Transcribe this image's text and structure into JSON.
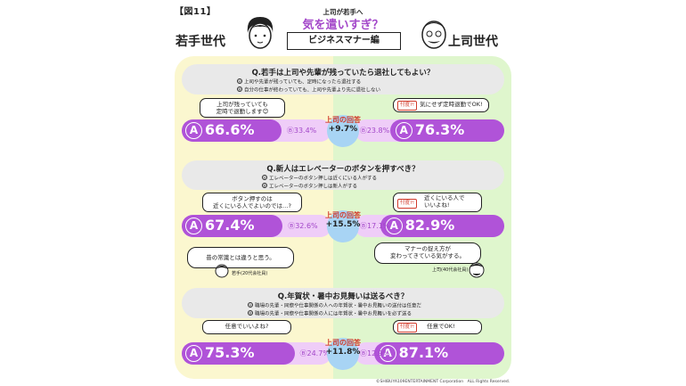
{
  "figure_tag": "【図11】",
  "header": {
    "subtitle": "上司が若手へ",
    "title": "気を遣いすぎ？",
    "banner": "ビジネスマナー編",
    "left_generation": "若手世代",
    "right_generation": "上司世代"
  },
  "boss_label_line1": "上司の回答",
  "questions": [
    {
      "title": "Q.若手は上司や先輩が残っていたら退社してもよい？",
      "option_a_marker": "Ⓐ",
      "option_a": "上司や先輩が残っていても、定時になったら退社する",
      "option_b_marker": "Ⓑ",
      "option_b": "自分の仕事が終わっていても、上司や先輩より先に退社しない",
      "young_comment": "上司が残っていても\n定時で退勤します😊",
      "boss_tag": "忖度?!",
      "boss_comment": "気にせず定時退勤でOK!",
      "diff": "+9.7%"
    },
    {
      "title": "Q.新人はエレベーターのボタンを押すべき？",
      "option_a_marker": "Ⓐ",
      "option_a": "エレベーターのボタン押しは近くにいる人がする",
      "option_b_marker": "Ⓑ",
      "option_b": "エレベーターのボタン押しは新人がする",
      "young_comment": "ボタン押すのは\n近くにいる人でよいのでは…?",
      "boss_tag": "忖度?!",
      "boss_comment": "近くにいる人で\nいいよね!",
      "diff": "+15.5%",
      "young_quote": "昔の常識とは違うと思う。",
      "young_quote_by": "若手(20代会社員)",
      "boss_quote": "マナーの捉え方が\n変わってきている気がする。",
      "boss_quote_by": "上司(40代会社員)"
    },
    {
      "title": "Q.年賀状・暑中お見舞いは送るべき？",
      "option_a_marker": "Ⓐ",
      "option_a": "職場の先輩・同僚や仕事関係の人への年賀状・暑中お見舞いの送付は任意だ",
      "option_b_marker": "Ⓑ",
      "option_b": "職場の先輩・同僚や仕事関係の人には年賀状・暑中お見舞いを必ず送る",
      "young_comment": "任意でいいよね?",
      "boss_tag": "忖度?!",
      "boss_comment": "任意でOK!",
      "diff": "+11.8%"
    }
  ],
  "chart_data": {
    "type": "bar",
    "categories": [
      "Q.若手は上司や先輩が残っていたら退社してもよい？",
      "Q.新人はエレベーターのボタンを押すべき？",
      "Q.年賀状・暑中お見舞いは送るべき？"
    ],
    "series": [
      {
        "name": "若手世代",
        "A": [
          66.6,
          67.4,
          75.3
        ],
        "B": [
          33.4,
          32.6,
          24.7
        ]
      },
      {
        "name": "上司世代",
        "A": [
          76.3,
          82.9,
          87.1
        ],
        "B": [
          23.8,
          17.1,
          12.9
        ]
      }
    ],
    "labels": {
      "young_A": [
        "66.6%",
        "67.4%",
        "75.3%"
      ],
      "young_B": [
        "Ⓑ33.4%",
        "Ⓑ32.6%",
        "Ⓑ24.7%"
      ],
      "boss_A": [
        "76.3%",
        "82.9%",
        "87.1%"
      ],
      "boss_B": [
        "Ⓑ23.8%",
        "Ⓑ17.1%",
        "Ⓑ12.9%"
      ]
    },
    "colors": {
      "major": "#b053d8",
      "minor": "#efcdf8",
      "young_bg": "#fbf7cf",
      "boss_bg": "#dff6cd",
      "accent": "#a347c9",
      "boss_label": "#d13a2a"
    }
  },
  "copyright": "©SHIBUYA109ENTERTAINMENT Corporation　ALL Rights Reserved."
}
